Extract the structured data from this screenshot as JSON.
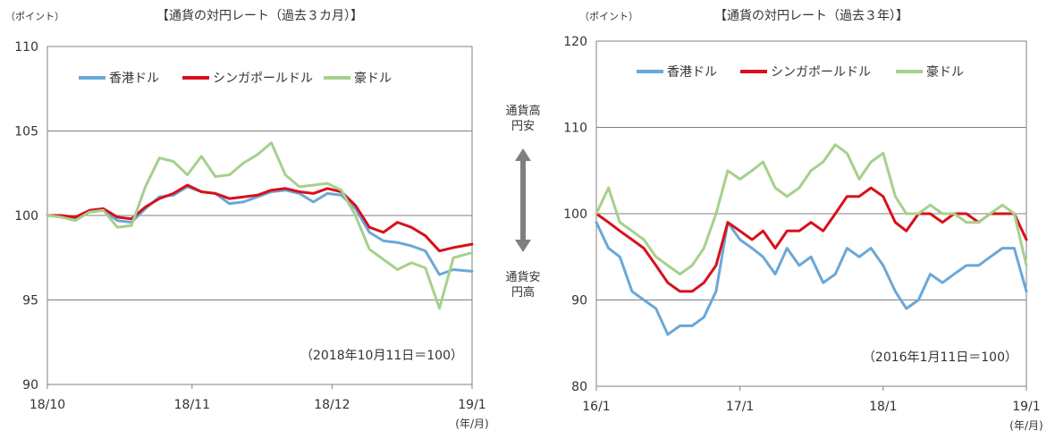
{
  "middle": {
    "top_label": "通貨高\n円安",
    "bottom_label": "通貨安\n円高"
  },
  "chart_data": [
    {
      "type": "line",
      "title": "【通貨の対円レート（過去３カ月）】",
      "ylabel": "（ポイント）",
      "xunit": "(年/月)",
      "ylim": [
        90,
        110
      ],
      "yticks": [
        90,
        95,
        100,
        105,
        110
      ],
      "xlim": [
        "2018-10-01",
        "2018-12-31"
      ],
      "xticks": [
        {
          "label": "18/10",
          "x": "2018-10-01"
        },
        {
          "label": "18/11",
          "x": "2018-11-01"
        },
        {
          "label": "18/12",
          "x": "2018-12-01"
        },
        {
          "label": "19/1",
          "x": "2018-12-31"
        }
      ],
      "grid": true,
      "note": "（2018年10月11日＝100）",
      "legend": "top",
      "series": [
        {
          "name": "香港ドル",
          "color": "#6aa8d8",
          "x": [
            "2018-10-01",
            "2018-10-04",
            "2018-10-07",
            "2018-10-10",
            "2018-10-13",
            "2018-10-16",
            "2018-10-19",
            "2018-10-22",
            "2018-10-25",
            "2018-10-28",
            "2018-10-31",
            "2018-11-03",
            "2018-11-06",
            "2018-11-09",
            "2018-11-12",
            "2018-11-15",
            "2018-11-18",
            "2018-11-21",
            "2018-11-24",
            "2018-11-27",
            "2018-11-30",
            "2018-12-03",
            "2018-12-06",
            "2018-12-09",
            "2018-12-12",
            "2018-12-15",
            "2018-12-18",
            "2018-12-21",
            "2018-12-24",
            "2018-12-27",
            "2018-12-31"
          ],
          "y": [
            100,
            100,
            99.8,
            100.2,
            100.3,
            99.7,
            99.6,
            100.4,
            101.1,
            101.2,
            101.7,
            101.4,
            101.3,
            100.7,
            100.8,
            101.1,
            101.4,
            101.5,
            101.3,
            100.8,
            101.3,
            101.2,
            100.4,
            99,
            98.5,
            98.4,
            98.2,
            97.9,
            96.5,
            96.8,
            96.7
          ]
        },
        {
          "name": "シンガポールドル",
          "color": "#d8101a",
          "x": [
            "2018-10-01",
            "2018-10-04",
            "2018-10-07",
            "2018-10-10",
            "2018-10-13",
            "2018-10-16",
            "2018-10-19",
            "2018-10-22",
            "2018-10-25",
            "2018-10-28",
            "2018-10-31",
            "2018-11-03",
            "2018-11-06",
            "2018-11-09",
            "2018-11-12",
            "2018-11-15",
            "2018-11-18",
            "2018-11-21",
            "2018-11-24",
            "2018-11-27",
            "2018-11-30",
            "2018-12-03",
            "2018-12-06",
            "2018-12-09",
            "2018-12-12",
            "2018-12-15",
            "2018-12-18",
            "2018-12-21",
            "2018-12-24",
            "2018-12-27",
            "2018-12-31"
          ],
          "y": [
            100,
            100,
            99.9,
            100.3,
            100.4,
            99.9,
            99.8,
            100.5,
            101,
            101.3,
            101.8,
            101.4,
            101.3,
            101,
            101.1,
            101.2,
            101.5,
            101.6,
            101.4,
            101.3,
            101.6,
            101.4,
            100.6,
            99.3,
            99,
            99.6,
            99.3,
            98.8,
            97.9,
            98.1,
            98.3
          ]
        },
        {
          "name": "豪ドル",
          "color": "#a6d08c",
          "x": [
            "2018-10-01",
            "2018-10-04",
            "2018-10-07",
            "2018-10-10",
            "2018-10-13",
            "2018-10-16",
            "2018-10-19",
            "2018-10-22",
            "2018-10-25",
            "2018-10-28",
            "2018-10-31",
            "2018-11-03",
            "2018-11-06",
            "2018-11-09",
            "2018-11-12",
            "2018-11-15",
            "2018-11-18",
            "2018-11-21",
            "2018-11-24",
            "2018-11-27",
            "2018-11-30",
            "2018-12-03",
            "2018-12-06",
            "2018-12-09",
            "2018-12-12",
            "2018-12-15",
            "2018-12-18",
            "2018-12-21",
            "2018-12-24",
            "2018-12-27",
            "2018-12-31"
          ],
          "y": [
            100,
            99.9,
            99.7,
            100.2,
            100.3,
            99.3,
            99.4,
            101.7,
            103.4,
            103.2,
            102.4,
            103.5,
            102.3,
            102.4,
            103.1,
            103.6,
            104.3,
            102.4,
            101.7,
            101.8,
            101.9,
            101.5,
            100,
            98,
            97.4,
            96.8,
            97.2,
            96.9,
            94.5,
            97.5,
            97.8
          ]
        }
      ]
    },
    {
      "type": "line",
      "title": "【通貨の対円レート（過去３年）】",
      "ylabel": "（ポイント）",
      "xunit": "(年/月)",
      "ylim": [
        80,
        120
      ],
      "yticks": [
        80,
        90,
        100,
        110,
        120
      ],
      "xlim": [
        "2016-01-01",
        "2019-01-01"
      ],
      "xticks": [
        {
          "label": "16/1",
          "x": "2016-01-01"
        },
        {
          "label": "17/1",
          "x": "2017-01-01"
        },
        {
          "label": "18/1",
          "x": "2018-01-01"
        },
        {
          "label": "19/1",
          "x": "2019-01-01"
        }
      ],
      "grid": true,
      "note": "（2016年1月11日＝100）",
      "legend": "top",
      "series": [
        {
          "name": "香港ドル",
          "color": "#6aa8d8",
          "x": [
            "2016-01-01",
            "2016-02-01",
            "2016-03-01",
            "2016-04-01",
            "2016-05-01",
            "2016-06-01",
            "2016-07-01",
            "2016-08-01",
            "2016-09-01",
            "2016-10-01",
            "2016-11-01",
            "2016-12-01",
            "2017-01-01",
            "2017-02-01",
            "2017-03-01",
            "2017-04-01",
            "2017-05-01",
            "2017-06-01",
            "2017-07-01",
            "2017-08-01",
            "2017-09-01",
            "2017-10-01",
            "2017-11-01",
            "2017-12-01",
            "2018-01-01",
            "2018-02-01",
            "2018-03-01",
            "2018-04-01",
            "2018-05-01",
            "2018-06-01",
            "2018-07-01",
            "2018-08-01",
            "2018-09-01",
            "2018-10-01",
            "2018-11-01",
            "2018-12-01",
            "2019-01-01"
          ],
          "y": [
            99,
            96,
            95,
            91,
            90,
            89,
            86,
            87,
            87,
            88,
            91,
            99,
            97,
            96,
            95,
            93,
            96,
            94,
            95,
            92,
            93,
            96,
            95,
            96,
            94,
            91,
            89,
            90,
            93,
            92,
            93,
            94,
            94,
            95,
            96,
            96,
            91
          ]
        },
        {
          "name": "シンガポールドル",
          "color": "#d8101a",
          "x": [
            "2016-01-01",
            "2016-02-01",
            "2016-03-01",
            "2016-04-01",
            "2016-05-01",
            "2016-06-01",
            "2016-07-01",
            "2016-08-01",
            "2016-09-01",
            "2016-10-01",
            "2016-11-01",
            "2016-12-01",
            "2017-01-01",
            "2017-02-01",
            "2017-03-01",
            "2017-04-01",
            "2017-05-01",
            "2017-06-01",
            "2017-07-01",
            "2017-08-01",
            "2017-09-01",
            "2017-10-01",
            "2017-11-01",
            "2017-12-01",
            "2018-01-01",
            "2018-02-01",
            "2018-03-01",
            "2018-04-01",
            "2018-05-01",
            "2018-06-01",
            "2018-07-01",
            "2018-08-01",
            "2018-09-01",
            "2018-10-01",
            "2018-11-01",
            "2018-12-01",
            "2019-01-01"
          ],
          "y": [
            100,
            99,
            98,
            97,
            96,
            94,
            92,
            91,
            91,
            92,
            94,
            99,
            98,
            97,
            98,
            96,
            98,
            98,
            99,
            98,
            100,
            102,
            102,
            103,
            102,
            99,
            98,
            100,
            100,
            99,
            100,
            100,
            99,
            100,
            100,
            100,
            97
          ]
        },
        {
          "name": "豪ドル",
          "color": "#a6d08c",
          "x": [
            "2016-01-01",
            "2016-02-01",
            "2016-03-01",
            "2016-04-01",
            "2016-05-01",
            "2016-06-01",
            "2016-07-01",
            "2016-08-01",
            "2016-09-01",
            "2016-10-01",
            "2016-11-01",
            "2016-12-01",
            "2017-01-01",
            "2017-02-01",
            "2017-03-01",
            "2017-04-01",
            "2017-05-01",
            "2017-06-01",
            "2017-07-01",
            "2017-08-01",
            "2017-09-01",
            "2017-10-01",
            "2017-11-01",
            "2017-12-01",
            "2018-01-01",
            "2018-02-01",
            "2018-03-01",
            "2018-04-01",
            "2018-05-01",
            "2018-06-01",
            "2018-07-01",
            "2018-08-01",
            "2018-09-01",
            "2018-10-01",
            "2018-11-01",
            "2018-12-01",
            "2019-01-01"
          ],
          "y": [
            100,
            103,
            99,
            98,
            97,
            95,
            94,
            93,
            94,
            96,
            100,
            105,
            104,
            105,
            106,
            103,
            102,
            103,
            105,
            106,
            108,
            107,
            104,
            106,
            107,
            102,
            100,
            100,
            101,
            100,
            100,
            99,
            99,
            100,
            101,
            100,
            94
          ]
        }
      ]
    }
  ]
}
